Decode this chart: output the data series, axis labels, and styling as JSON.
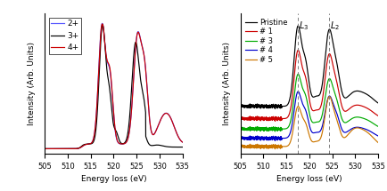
{
  "xlim": [
    505,
    535
  ],
  "xlabel": "Energy loss (eV)",
  "ylabel": "Intensity (Arb. Units)",
  "xticks": [
    505,
    510,
    515,
    520,
    525,
    530,
    535
  ],
  "left_legend": [
    "2+",
    "3+",
    "4+"
  ],
  "left_colors": [
    "#5555ff",
    "#000000",
    "#cc0000"
  ],
  "right_legend": [
    "Pristine",
    "# 1",
    "# 3",
    "# 4",
    "# 5"
  ],
  "right_colors": [
    "#000000",
    "#cc0000",
    "#00aa00",
    "#0000cc",
    "#cc7700"
  ],
  "L3_line": 517.5,
  "L2_line": 524.3,
  "background_color": "white"
}
